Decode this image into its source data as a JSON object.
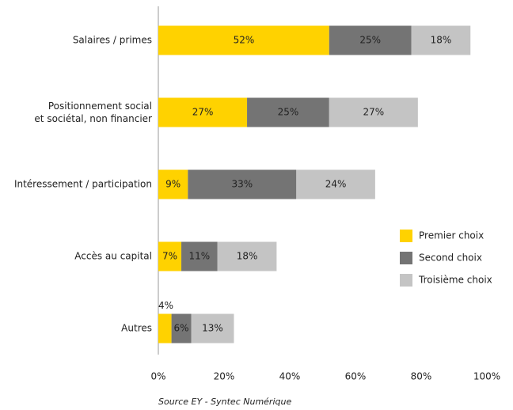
{
  "chart_data": {
    "type": "stacked-bar-horizontal",
    "categories": [
      "Salaires / primes",
      "Positionnement social\net sociétal, non financier",
      "Intéressement / participation",
      "Accès au capital",
      "Autres"
    ],
    "series": [
      {
        "name": "Premier choix",
        "color": "#ffd200",
        "values": [
          52,
          27,
          9,
          7,
          4
        ],
        "value_labels": [
          "52%",
          "27%",
          "9%",
          "7%",
          "4%"
        ]
      },
      {
        "name": "Second choix",
        "color": "#747474",
        "values": [
          25,
          25,
          33,
          11,
          6
        ],
        "value_labels": [
          "25%",
          "25%",
          "33%",
          "11%",
          "6%"
        ]
      },
      {
        "name": "Troisième choix",
        "color": "#c4c4c4",
        "values": [
          18,
          27,
          24,
          18,
          13
        ],
        "value_labels": [
          "18%",
          "27%",
          "24%",
          "18%",
          "13%"
        ]
      }
    ],
    "xlim": [
      0,
      100
    ],
    "xticks": [
      {
        "value": 0,
        "label": "0%"
      },
      {
        "value": 20,
        "label": "20%"
      },
      {
        "value": 40,
        "label": "40%"
      },
      {
        "value": 60,
        "label": "60%"
      },
      {
        "value": 80,
        "label": "80%"
      },
      {
        "value": 100,
        "label": "100%"
      }
    ],
    "legend": "right",
    "source": "Source EY - Syntec Numérique"
  }
}
